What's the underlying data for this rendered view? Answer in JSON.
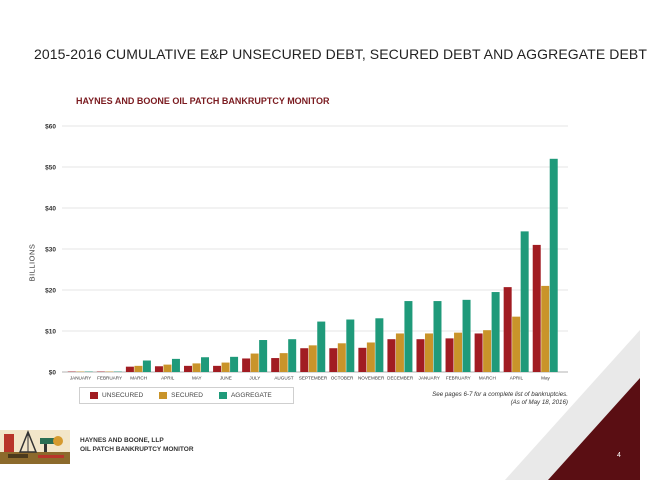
{
  "page": {
    "title": "2015-2016 CUMULATIVE E&P UNSECURED DEBT, SECURED DEBT AND AGGREGATE DEBT",
    "page_number": "4"
  },
  "chart_data": {
    "type": "bar",
    "title": "HAYNES AND BOONE OIL PATCH BANKRUPTCY MONITOR",
    "ylabel": "BILLIONS",
    "xlabel": "",
    "ylim": [
      0,
      60
    ],
    "yticks": [
      "$0",
      "$10",
      "$20",
      "$30",
      "$40",
      "$50",
      "$60"
    ],
    "ytick_values": [
      0,
      10,
      20,
      30,
      40,
      50,
      60
    ],
    "grid": true,
    "legend_position": "bottom-left",
    "categories": [
      "JANUARY",
      "FEBRUARY",
      "MARCH",
      "APRIL",
      "MAY",
      "JUNE",
      "JULY",
      "AUGUST",
      "SEPTEMBER",
      "OCTOBER",
      "NOVEMBER",
      "DECEMBER",
      "JANUARY",
      "FEBRUARY",
      "MARCH",
      "APRIL",
      "May"
    ],
    "series": [
      {
        "name": "UNSECURED",
        "color": "#a11c22",
        "values": [
          0.1,
          0.1,
          1.3,
          1.4,
          1.5,
          1.5,
          3.3,
          3.4,
          5.8,
          5.8,
          5.9,
          8.0,
          8.0,
          8.2,
          9.4,
          20.7,
          31.0
        ]
      },
      {
        "name": "SECURED",
        "color": "#c9942a",
        "values": [
          0.1,
          0.1,
          1.5,
          1.8,
          2.1,
          2.3,
          4.5,
          4.6,
          6.5,
          7.0,
          7.2,
          9.4,
          9.4,
          9.6,
          10.2,
          13.5,
          21.0
        ]
      },
      {
        "name": "AGGREGATE",
        "color": "#1f9a7a",
        "values": [
          0.1,
          0.1,
          2.8,
          3.2,
          3.6,
          3.7,
          7.8,
          8.0,
          12.3,
          12.8,
          13.1,
          17.3,
          17.3,
          17.6,
          19.5,
          34.3,
          52.0
        ]
      }
    ]
  },
  "legend": {
    "items": [
      "UNSECURED",
      "SECURED",
      "AGGREGATE"
    ],
    "colors": [
      "#a11c22",
      "#c9942a",
      "#1f9a7a"
    ]
  },
  "note": {
    "line1": "See pages 6-7 for a complete list of bankruptcies.",
    "line2": "(As of May 18, 2016)"
  },
  "footer": {
    "line1": "HAYNES AND BOONE, LLP",
    "line2": "OIL PATCH BANKRUPTCY MONITOR"
  },
  "colors": {
    "accent_dark_red": "#5a0e13",
    "corner_gray": "#e9e9e9"
  }
}
